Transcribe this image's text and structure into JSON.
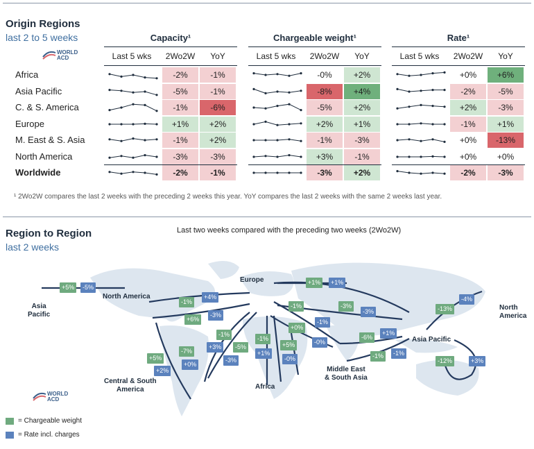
{
  "section1": {
    "title": "Origin Regions",
    "subtitle": "last 2 to 5 weeks"
  },
  "logo": {
    "line1": "WORLD",
    "line2": "ACD"
  },
  "groups": [
    {
      "title": "Capacity¹",
      "columns": [
        "Last 5 wks",
        "2Wo2W",
        "YoY"
      ]
    },
    {
      "title": "Chargeable weight¹",
      "columns": [
        "Last 5 wks",
        "2Wo2W",
        "YoY"
      ]
    },
    {
      "title": "Rate¹",
      "columns": [
        "Last 5 wks",
        "2Wo2W",
        "YoY"
      ]
    }
  ],
  "rows": [
    {
      "label": "Africa",
      "cap": [
        "-2%",
        "-1%"
      ],
      "cw": [
        "-0%",
        "+2%"
      ],
      "rate": [
        "+0%",
        "+6%"
      ]
    },
    {
      "label": "Asia Pacific",
      "cap": [
        "-5%",
        "-1%"
      ],
      "cw": [
        "-8%",
        "+4%"
      ],
      "rate": [
        "-2%",
        "-5%"
      ]
    },
    {
      "label": "C. & S. America",
      "cap": [
        "-1%",
        "-6%"
      ],
      "cw": [
        "-5%",
        "+2%"
      ],
      "rate": [
        "+2%",
        "-3%"
      ]
    },
    {
      "label": "Europe",
      "cap": [
        "+1%",
        "+2%"
      ],
      "cw": [
        "+2%",
        "+1%"
      ],
      "rate": [
        "-1%",
        "+1%"
      ]
    },
    {
      "label": "M. East & S. Asia",
      "cap": [
        "-1%",
        "+2%"
      ],
      "cw": [
        "-1%",
        "-3%"
      ],
      "rate": [
        "+0%",
        "-13%"
      ]
    },
    {
      "label": "North America",
      "cap": [
        "-3%",
        "-3%"
      ],
      "cw": [
        "+3%",
        "-1%"
      ],
      "rate": [
        "+0%",
        "+0%"
      ]
    },
    {
      "label": "Worldwide",
      "cap": [
        "-2%",
        "-1%"
      ],
      "cw": [
        "-3%",
        "+2%"
      ],
      "rate": [
        "-2%",
        "-3%"
      ]
    }
  ],
  "footnote": "¹ 2Wo2W compares the last 2 weeks with the preceding 2 weeks this year. YoY compares the last 2 weeks with the same 2 weeks last year.",
  "section2": {
    "title": "Region to Region",
    "subtitle": "last 2 weeks",
    "caption": "Last two weeks compared with the preceding two weeks (2Wo2W)"
  },
  "regions": {
    "asia_pacific_left": "Asia\nPacific",
    "north_america_top": "North America",
    "europe": "Europe",
    "north_america_right": "North\nAmerica",
    "asia_pacific_right": "Asia Pacific",
    "central_south_america": "Central & South\nAmerica",
    "africa": "Africa",
    "middle_east": "Middle East\n& South Asia"
  },
  "legend": {
    "green": "= Chargeable weight",
    "blue": "= Rate incl. charges"
  },
  "colors": {
    "green_badge": "#6faa7f",
    "blue_badge": "#5b82bd",
    "pos_cell": "#cfe6d2",
    "neg_cell": "#f3d0d2",
    "strong_pos": "#6fb07c",
    "strong_neg": "#d9666b"
  },
  "map_badges": [
    {
      "t": "+5%",
      "c": "g"
    },
    {
      "t": "-5%",
      "c": "b"
    },
    {
      "t": "+1%",
      "c": "g"
    },
    {
      "t": "+1%",
      "c": "b"
    },
    {
      "t": "-1%",
      "c": "g"
    },
    {
      "t": "+4%",
      "c": "b"
    },
    {
      "t": "+6%",
      "c": "g"
    },
    {
      "t": "-3%",
      "c": "b"
    },
    {
      "t": "-1%",
      "c": "g"
    },
    {
      "t": "+3%",
      "c": "b"
    },
    {
      "t": "-7%",
      "c": "g"
    },
    {
      "t": "+0%",
      "c": "b"
    },
    {
      "t": "+5%",
      "c": "g"
    },
    {
      "t": "+2%",
      "c": "b"
    },
    {
      "t": "-5%",
      "c": "g"
    },
    {
      "t": "-3%",
      "c": "b"
    },
    {
      "t": "-1%",
      "c": "g"
    },
    {
      "t": "+1%",
      "c": "b"
    },
    {
      "t": "+5%",
      "c": "g"
    },
    {
      "t": "-0%",
      "c": "b"
    },
    {
      "t": "-1%",
      "c": "g"
    },
    {
      "t": "-1%",
      "c": "b"
    },
    {
      "t": "+0%",
      "c": "g"
    },
    {
      "t": "-0%",
      "c": "b"
    },
    {
      "t": "-3%",
      "c": "g"
    },
    {
      "t": "-3%",
      "c": "b"
    },
    {
      "t": "-6%",
      "c": "g"
    },
    {
      "t": "+1%",
      "c": "b"
    },
    {
      "t": "-1%",
      "c": "g"
    },
    {
      "t": "-1%",
      "c": "b"
    },
    {
      "t": "-13%",
      "c": "g"
    },
    {
      "t": "-4%",
      "c": "b"
    },
    {
      "t": "-12%",
      "c": "g"
    },
    {
      "t": "+3%",
      "c": "b"
    }
  ],
  "chart_data": {
    "type": "table",
    "groups": [
      "Capacity",
      "Chargeable weight",
      "Rate"
    ],
    "metrics": [
      "2Wo2W",
      "YoY"
    ],
    "regions": [
      "Africa",
      "Asia Pacific",
      "C. & S. America",
      "Europe",
      "M. East & S. Asia",
      "North America",
      "Worldwide"
    ],
    "capacity": {
      "2Wo2W": [
        -2,
        -5,
        -1,
        1,
        -1,
        -3,
        -2
      ],
      "YoY": [
        -1,
        -1,
        -6,
        2,
        2,
        -3,
        -1
      ]
    },
    "chargeable_weight": {
      "2Wo2W": [
        0,
        -8,
        -5,
        2,
        -1,
        3,
        -3
      ],
      "YoY": [
        2,
        4,
        2,
        1,
        -3,
        -1,
        2
      ]
    },
    "rate": {
      "2Wo2W": [
        0,
        -2,
        2,
        -1,
        0,
        0,
        -2
      ],
      "YoY": [
        6,
        -5,
        -3,
        1,
        -13,
        0,
        -3
      ]
    }
  }
}
